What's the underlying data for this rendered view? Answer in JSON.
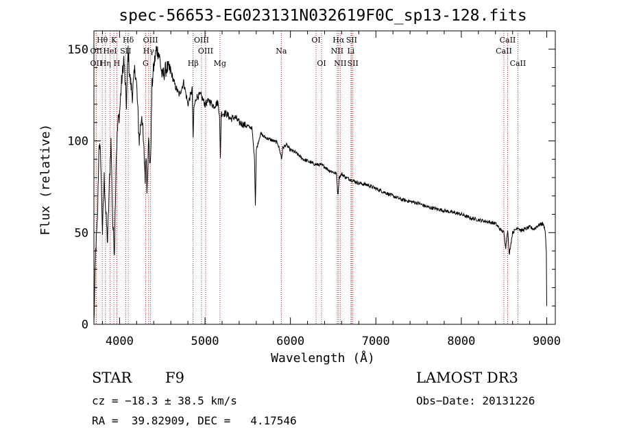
{
  "chart_data": {
    "type": "line",
    "title": "spec-56653-EG023131N032619F0C_sp13-128.fits",
    "xlabel": "Wavelength (Å)",
    "ylabel": "Flux (relative)",
    "xlim": [
      3700,
      9100
    ],
    "ylim": [
      0,
      160
    ],
    "xticks": [
      4000,
      5000,
      6000,
      7000,
      8000,
      9000
    ],
    "yticks": [
      0,
      50,
      100,
      150
    ],
    "series": [
      {
        "name": "spectrum",
        "x": [
          3700,
          3720,
          3740,
          3760,
          3780,
          3800,
          3820,
          3840,
          3860,
          3880,
          3900,
          3920,
          3940,
          3960,
          3980,
          4000,
          4020,
          4050,
          4080,
          4100,
          4120,
          4150,
          4180,
          4200,
          4230,
          4260,
          4290,
          4300,
          4310,
          4320,
          4340,
          4360,
          4380,
          4400,
          4430,
          4460,
          4500,
          4550,
          4600,
          4650,
          4700,
          4750,
          4800,
          4850,
          4861,
          4870,
          4900,
          4950,
          5000,
          5050,
          5100,
          5150,
          5170,
          5180,
          5190,
          5250,
          5300,
          5350,
          5400,
          5450,
          5500,
          5550,
          5580,
          5590,
          5600,
          5650,
          5700,
          5750,
          5800,
          5850,
          5890,
          5896,
          5910,
          5950,
          6000,
          6050,
          6100,
          6150,
          6200,
          6250,
          6300,
          6350,
          6400,
          6450,
          6500,
          6540,
          6555,
          6563,
          6570,
          6600,
          6650,
          6700,
          6750,
          6800,
          6900,
          7000,
          7100,
          7200,
          7300,
          7400,
          7500,
          7600,
          7700,
          7800,
          7900,
          8000,
          8100,
          8200,
          8300,
          8400,
          8450,
          8498,
          8520,
          8542,
          8560,
          8600,
          8662,
          8700,
          8750,
          8800,
          8850,
          8900,
          8950,
          8980,
          8995,
          9000
        ],
        "values": [
          0,
          40,
          55,
          100,
          90,
          50,
          80,
          60,
          45,
          75,
          100,
          55,
          40,
          90,
          110,
          115,
          130,
          145,
          120,
          150,
          135,
          125,
          140,
          130,
          100,
          115,
          90,
          80,
          95,
          75,
          100,
          85,
          130,
          140,
          150,
          148,
          135,
          140,
          138,
          130,
          125,
          132,
          120,
          128,
          100,
          118,
          124,
          125,
          120,
          122,
          119,
          121,
          115,
          90,
          115,
          115,
          112,
          113,
          110,
          109,
          108,
          107,
          90,
          65,
          95,
          104,
          102,
          101,
          100,
          99,
          92,
          90,
          96,
          98,
          95,
          94,
          92,
          90,
          89,
          88,
          87,
          87,
          86,
          84,
          83,
          82,
          70,
          75,
          80,
          82,
          80,
          79,
          78,
          77,
          76,
          74,
          72,
          70,
          68,
          67,
          66,
          64,
          63,
          62,
          61,
          60,
          58,
          57,
          56,
          55,
          52,
          50,
          42,
          52,
          38,
          50,
          53,
          51,
          52,
          53,
          52,
          54,
          55,
          52,
          40,
          10
        ]
      }
    ],
    "lines_top": [
      {
        "label": "Hθ",
        "x": 3798
      },
      {
        "label": "K",
        "x": 3934
      },
      {
        "label": "Hδ",
        "x": 4102
      },
      {
        "label": "OIII",
        "x": 4363
      },
      {
        "label": "OIII",
        "x": 4959
      },
      {
        "label": "OI",
        "x": 6300
      },
      {
        "label": "Hα",
        "x": 6563
      },
      {
        "label": "SII",
        "x": 6716
      },
      {
        "label": "CaII",
        "x": 8542
      }
    ],
    "lines_mid": [
      {
        "label": "OII",
        "x": 3727
      },
      {
        "label": "HeI",
        "x": 3889
      },
      {
        "label": "SII",
        "x": 4072
      },
      {
        "label": "Hγ",
        "x": 4340
      },
      {
        "label": "OIII",
        "x": 5007
      },
      {
        "label": "Na",
        "x": 5893
      },
      {
        "label": "NII",
        "x": 6548
      },
      {
        "label": "Li",
        "x": 6708
      },
      {
        "label": "CaII",
        "x": 8498
      }
    ],
    "lines_low": [
      {
        "label": "OII",
        "x": 3727
      },
      {
        "label": "Hη",
        "x": 3835
      },
      {
        "label": "H",
        "x": 3968
      },
      {
        "label": "G",
        "x": 4305
      },
      {
        "label": "Hβ",
        "x": 4861
      },
      {
        "label": "Mg",
        "x": 5175
      },
      {
        "label": "OI",
        "x": 6364
      },
      {
        "label": "NII",
        "x": 6583
      },
      {
        "label": "SII",
        "x": 6731
      },
      {
        "label": "CaII",
        "x": 8662
      }
    ],
    "line_color": "#b22222",
    "spectrum_color": "#000000"
  },
  "info": {
    "object_class": "STAR",
    "subclass": "F9",
    "survey": "LAMOST DR3",
    "cz": "cz = −18.3 ± 38.5 km/s",
    "obs_date": "Obs−Date: 20131226",
    "radec": "RA =  39.82909, DEC =   4.17546"
  }
}
